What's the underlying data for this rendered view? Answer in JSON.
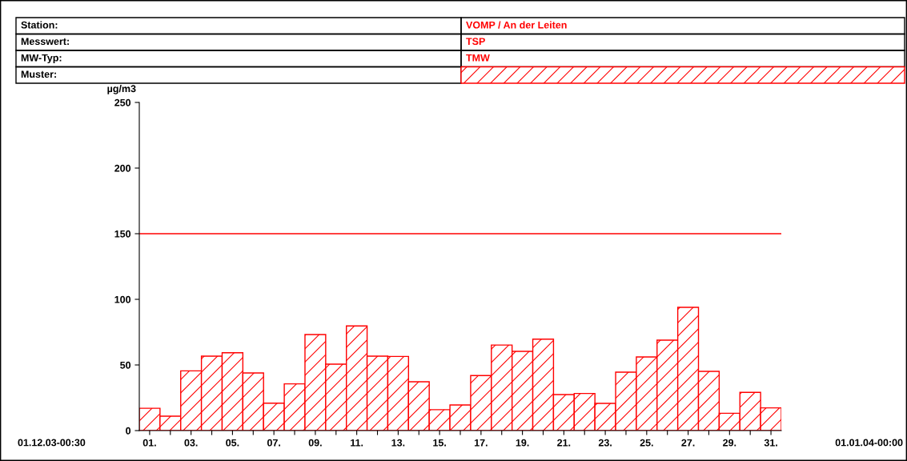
{
  "chart_data": {
    "type": "bar",
    "ylabel": "µg/m3",
    "categories": [
      "01.",
      null,
      "03.",
      null,
      "05.",
      null,
      "07.",
      null,
      "09.",
      null,
      "11.",
      null,
      "13.",
      null,
      "15.",
      null,
      "17.",
      null,
      "19.",
      null,
      "21.",
      null,
      "23.",
      null,
      "25.",
      null,
      "27.",
      null,
      "29.",
      null,
      "31."
    ],
    "series": [
      {
        "color": "#ff0000",
        "values": [
          17,
          11,
          45.5,
          56.7,
          59.3,
          43.9,
          20.9,
          35.6,
          73.2,
          50.6,
          79.7,
          56.7,
          56.5,
          37.2,
          15.9,
          19.5,
          41.9,
          65.2,
          60.4,
          69.7,
          27.4,
          28.3,
          20.7,
          44.5,
          56.1,
          68.9,
          93.9,
          45.1,
          13.2,
          29.1,
          17.3
        ]
      }
    ],
    "ylim": [
      0,
      250
    ],
    "yticks": [
      0,
      50,
      100,
      150,
      200,
      250
    ],
    "ref_lines": [
      {
        "axis": "y",
        "value": 150,
        "color": "#ff0000",
        "line_style": "solid"
      }
    ],
    "grid": false,
    "legend": false,
    "annotations": [
      "Station:",
      "VOMP / An der Leiten",
      "Messwert:",
      "TSP",
      "MW-Typ:",
      "TMW",
      "Muster:",
      "01.12.03-00:30",
      "01.01.04-00:00"
    ]
  }
}
